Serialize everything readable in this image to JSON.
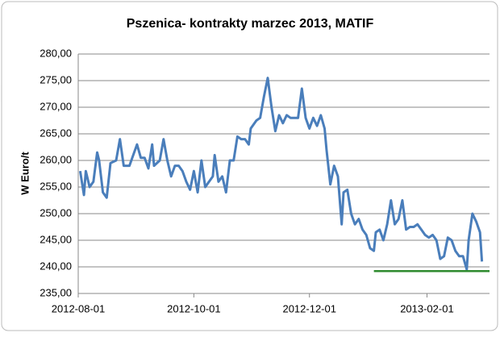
{
  "chart_data": {
    "type": "line",
    "title": "Pszenica- kontrakty marzec 2013, MATIF",
    "y_label": "W Euro/t",
    "x": [
      "2012-08-02",
      "2012-08-04",
      "2012-08-05",
      "2012-08-07",
      "2012-08-09",
      "2012-08-11",
      "2012-08-12",
      "2012-08-14",
      "2012-08-16",
      "2012-08-18",
      "2012-08-21",
      "2012-08-23",
      "2012-08-25",
      "2012-08-28",
      "2012-08-30",
      "2012-09-01",
      "2012-09-03",
      "2012-09-05",
      "2012-09-07",
      "2012-09-09",
      "2012-09-10",
      "2012-09-13",
      "2012-09-15",
      "2012-09-17",
      "2012-09-19",
      "2012-09-21",
      "2012-09-23",
      "2012-09-25",
      "2012-09-27",
      "2012-09-29",
      "2012-10-01",
      "2012-10-03",
      "2012-10-05",
      "2012-10-07",
      "2012-10-09",
      "2012-10-11",
      "2012-10-12",
      "2012-10-14",
      "2012-10-16",
      "2012-10-18",
      "2012-10-20",
      "2012-10-22",
      "2012-10-24",
      "2012-10-26",
      "2012-10-28",
      "2012-10-30",
      "2012-10-31",
      "2012-11-03",
      "2012-11-05",
      "2012-11-07",
      "2012-11-09",
      "2012-11-11",
      "2012-11-13",
      "2012-11-15",
      "2012-11-17",
      "2012-11-19",
      "2012-11-21",
      "2012-11-23",
      "2012-11-25",
      "2012-11-27",
      "2012-11-29",
      "2012-12-01",
      "2012-12-03",
      "2012-12-05",
      "2012-12-07",
      "2012-12-09",
      "2012-12-10",
      "2012-12-12",
      "2012-12-14",
      "2012-12-16",
      "2012-12-18",
      "2012-12-19",
      "2012-12-21",
      "2012-12-23",
      "2012-12-25",
      "2012-12-27",
      "2012-12-29",
      "2012-12-31",
      "2013-01-02",
      "2013-01-04",
      "2013-01-05",
      "2013-01-07",
      "2013-01-09",
      "2013-01-11",
      "2013-01-13",
      "2013-01-15",
      "2013-01-17",
      "2013-01-19",
      "2013-01-21",
      "2013-01-23",
      "2013-01-25",
      "2013-01-27",
      "2013-01-29",
      "2013-01-31",
      "2013-02-02",
      "2013-02-04",
      "2013-02-06",
      "2013-02-08",
      "2013-02-10",
      "2013-02-12",
      "2013-02-14",
      "2013-02-16",
      "2013-02-18",
      "2013-02-20",
      "2013-02-22",
      "2013-02-23",
      "2013-02-25",
      "2013-02-27",
      "2013-03-01",
      "2013-03-02"
    ],
    "series": [
      {
        "name": "Pszenica",
        "color": "#4a7ebb",
        "values": [
          258,
          253.5,
          258,
          255,
          256,
          261.5,
          260,
          254,
          253,
          259.5,
          260,
          264,
          259,
          259,
          261,
          263,
          260.5,
          260.5,
          258.5,
          263,
          259,
          260,
          264,
          260,
          257,
          259,
          259,
          258,
          256,
          254.5,
          258,
          254,
          260,
          255,
          256,
          257,
          261,
          256,
          257,
          254,
          260,
          260,
          264.5,
          264,
          264,
          263,
          266,
          267.5,
          268,
          272,
          275.5,
          270,
          265.5,
          268.5,
          267,
          268.5,
          268,
          268,
          268,
          273.5,
          268,
          266,
          268,
          266.5,
          268.5,
          266,
          262,
          255.5,
          259,
          257,
          248,
          254,
          254.5,
          250,
          248,
          249,
          247,
          246,
          243.5,
          243,
          246.5,
          247,
          245,
          248,
          252.5,
          248,
          249,
          252.5,
          247,
          247.5,
          247.5,
          248,
          247,
          246,
          245.5,
          246,
          245,
          241.5,
          242,
          245.5,
          245,
          243,
          242,
          242,
          239.5,
          245,
          250,
          248.5,
          246.5,
          241
        ]
      }
    ],
    "reference_line": {
      "value": 239.2,
      "color": "#2e8b2e",
      "x": [
        "2013-01-04",
        "2013-03-06"
      ]
    },
    "xlim": [
      "2012-08-01",
      "2013-03-06"
    ],
    "xticks": [
      "2012-08-01",
      "2012-10-01",
      "2012-12-01",
      "2013-02-01"
    ],
    "ylim": [
      235,
      280
    ],
    "yticks": [
      {
        "value": 235,
        "label": "235,00"
      },
      {
        "value": 240,
        "label": "240,00"
      },
      {
        "value": 245,
        "label": "245,00"
      },
      {
        "value": 250,
        "label": "250,00"
      },
      {
        "value": 255,
        "label": "255,00"
      },
      {
        "value": 260,
        "label": "260,00"
      },
      {
        "value": 265,
        "label": "265,00"
      },
      {
        "value": 270,
        "label": "270,00"
      },
      {
        "value": 275,
        "label": "275,00"
      },
      {
        "value": 280,
        "label": "280,00"
      }
    ],
    "grid": true
  }
}
